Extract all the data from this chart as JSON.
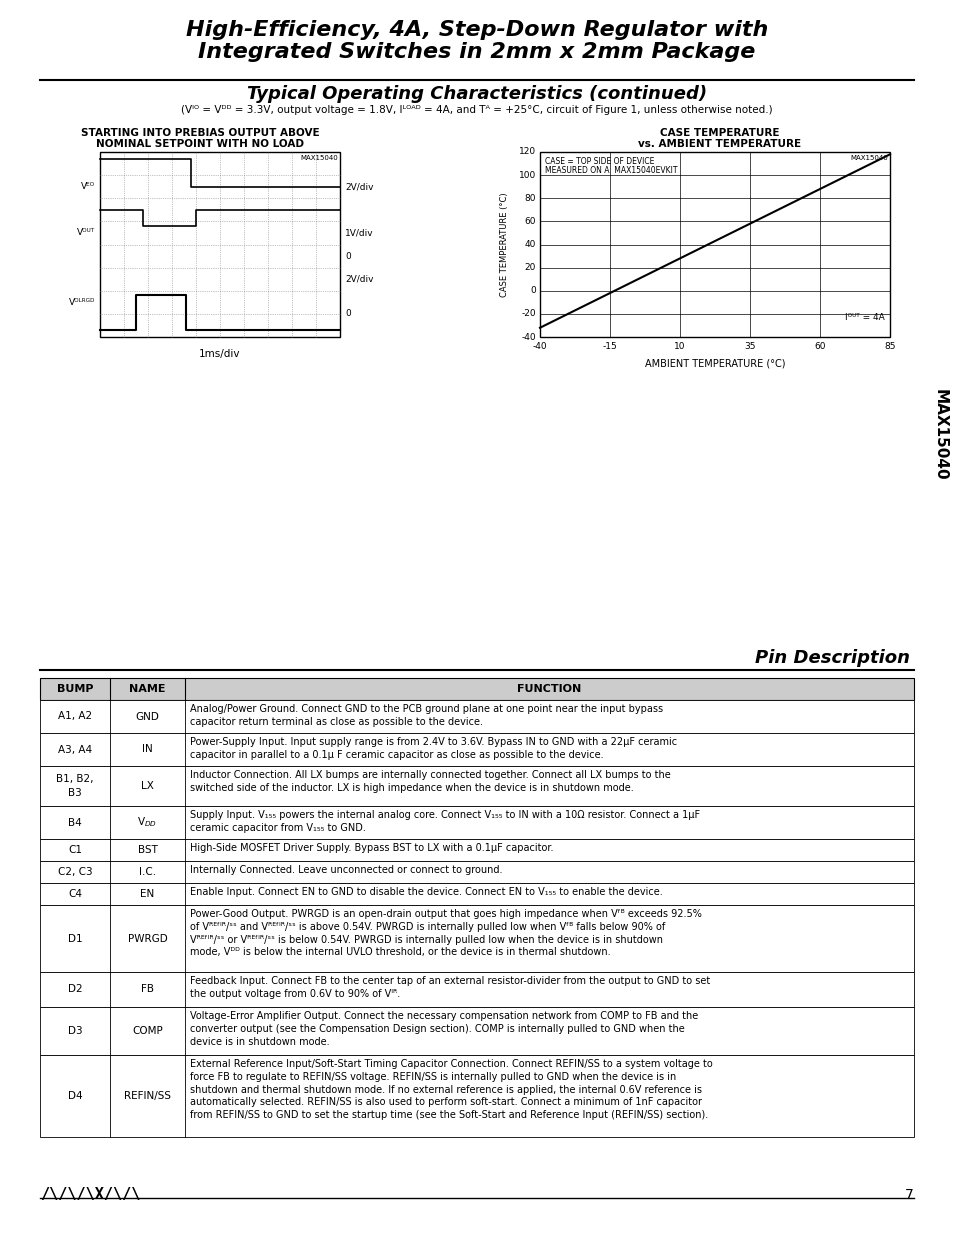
{
  "title_line1": "High-Efficiency, 4A, Step-Down Regulator with",
  "title_line2": "Integrated Switches in 2mm x 2mm Package",
  "section1_title": "Typical Operating Characteristics (continued)",
  "section1_subtitle": "(V₁ₙ = V₄₅ = 3.3V, output voltage = 1.8V, Iₗ₀ₐ₉ = 4A, and Tₐ = +25°C, circuit of Figure 1, unless otherwise noted.)",
  "chart1_title_line1": "STARTING INTO PREBIAS OUTPUT ABOVE",
  "chart1_title_line2": "NOMINAL SETPOINT WITH NO LOAD",
  "chart2_title_line1": "CASE TEMPERATURE",
  "chart2_title_line2": "vs. AMBIENT TEMPERATURE",
  "pin_desc_title": "Pin Description",
  "table_headers": [
    "BUMP",
    "NAME",
    "FUNCTION"
  ],
  "table_rows": [
    [
      "A1, A2",
      "GND",
      "Analog/Power Ground. Connect GND to the PCB ground plane at one point near the input bypass\ncapacitor return terminal as close as possible to the device."
    ],
    [
      "A3, A4",
      "IN",
      "Power-Supply Input. Input supply range is from 2.4V to 3.6V. Bypass IN to GND with a 22μF ceramic\ncapacitor in parallel to a 0.1μ F ceramic capacitor as close as possible to the device."
    ],
    [
      "B1, B2,\nB3",
      "LX",
      "Inductor Connection. All LX bumps are internally connected together. Connect all LX bumps to the\nswitched side of the inductor. LX is high impedance when the device is in shutdown mode."
    ],
    [
      "B4",
      "V₁₅₅",
      "Supply Input. V₁₅₅ powers the internal analog core. Connect V₁₅₅ to IN with a 10Ω resistor. Connect a 1μF\nceramic capacitor from V₁₅₅ to GND."
    ],
    [
      "C1",
      "BST",
      "High-Side MOSFET Driver Supply. Bypass BST to LX with a 0.1μF capacitor."
    ],
    [
      "C2, C3",
      "I.C.",
      "Internally Connected. Leave unconnected or connect to ground."
    ],
    [
      "C4",
      "EN",
      "Enable Input. Connect EN to GND to disable the device. Connect EN to V₁₅₅ to enable the device."
    ],
    [
      "D1",
      "PWRGD",
      "Power-Good Output. PWRGD is an open-drain output that goes high impedance when Vᶠᴮ exceeds 92.5%\nof Vᴿᴱᶠᴵᴿ/ˢˢ and Vᴿᴱᶠᴵᴿ/ˢˢ is above 0.54V. PWRGD is internally pulled low when Vᶠᴮ falls below 90% of\nVᴿᴱᶠᴵᴿ/ˢˢ or Vᴿᴱᶠᴵᴿ/ˢˢ is below 0.54V. PWRGD is internally pulled low when the device is in shutdown\nmode, Vᴰᴰ is below the internal UVLO threshold, or the device is in thermal shutdown."
    ],
    [
      "D2",
      "FB",
      "Feedback Input. Connect FB to the center tap of an external resistor-divider from the output to GND to set\nthe output voltage from 0.6V to 90% of Vᴵᴿ."
    ],
    [
      "D3",
      "COMP",
      "Voltage-Error Amplifier Output. Connect the necessary compensation network from COMP to FB and the\nconverter output (see the Compensation Design section). COMP is internally pulled to GND when the\ndevice is in shutdown mode."
    ],
    [
      "D4",
      "REFIN/SS",
      "External Reference Input/Soft-Start Timing Capacitor Connection. Connect REFIN/SS to a system voltage to\nforce FB to regulate to REFIN/SS voltage. REFIN/SS is internally pulled to GND when the device is in\nshutdown and thermal shutdown mode. If no external reference is applied, the internal 0.6V reference is\nautomatically selected. REFIN/SS is also used to perform soft-start. Connect a minimum of 1nF capacitor\nfrom REFIN/SS to GND to set the startup time (see the Soft-Start and Reference Input (REFIN/SS) section)."
    ]
  ],
  "page_number": "7",
  "sidebar_text": "MAX15040",
  "background_color": "#ffffff",
  "header_bg": "#d0d0d0",
  "border_color": "#000000",
  "text_color": "#000000"
}
